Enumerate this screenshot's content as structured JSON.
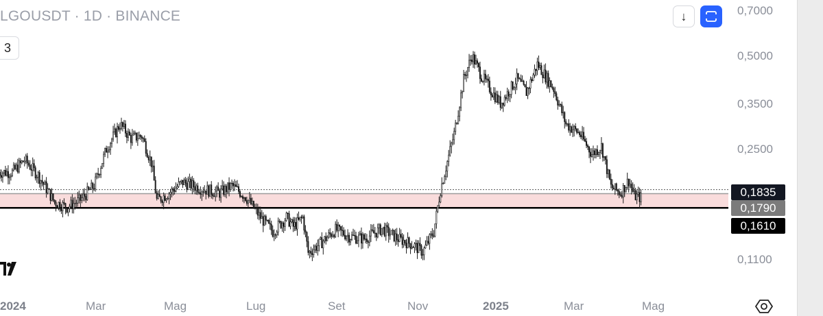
{
  "header": {
    "symbol": "LGOUSDT",
    "interval": "1D",
    "exchange": "BINANCE",
    "sep": "·",
    "interval_chip": "3"
  },
  "toolbar": {
    "down_arrow": "↓",
    "down_icon": "arrow-down-icon",
    "auto_icon": "auto-scale-icon"
  },
  "colors": {
    "candle": "#1a1a1a",
    "zone_fill": "#f9dcdc",
    "zone_border": "#9b9b9b",
    "support_line": "#000000",
    "accent": "#2962ff"
  },
  "price_axis": {
    "ticks": [
      "0,7000",
      "0,5000",
      "0,3500",
      "0,2500",
      "0,1100"
    ]
  },
  "price_tags": [
    {
      "label": "0,1835",
      "color": "#131722"
    },
    {
      "label": "0,1790",
      "color": "#7b7b7b"
    },
    {
      "label": "0,1610",
      "color": "#000000"
    }
  ],
  "time_axis": {
    "ticks": [
      {
        "label": "2024",
        "bold": true
      },
      {
        "label": "Mar",
        "bold": false
      },
      {
        "label": "Mag",
        "bold": false
      },
      {
        "label": "Lug",
        "bold": false
      },
      {
        "label": "Set",
        "bold": false
      },
      {
        "label": "Nov",
        "bold": false
      },
      {
        "label": "2025",
        "bold": true
      },
      {
        "label": "Mar",
        "bold": false
      },
      {
        "label": "Mag",
        "bold": false
      }
    ]
  },
  "chart_data": {
    "type": "candlestick",
    "symbol": "LGOUSDT",
    "timeframe": "1D",
    "exchange": "BINANCE",
    "y_scale": "log",
    "ylim": [
      0.08,
      0.76
    ],
    "x_range": [
      "2024-01-01",
      "2025-05-31"
    ],
    "horizontal_lines": [
      {
        "price": 0.1835,
        "style": "dotted"
      },
      {
        "price": 0.179,
        "style": "zone-top"
      },
      {
        "price": 0.161,
        "style": "solid"
      }
    ],
    "zone": {
      "from": 0.161,
      "to": 0.179
    },
    "close_path": [
      [
        "2024-01-01",
        0.21
      ],
      [
        "2024-01-10",
        0.23
      ],
      [
        "2024-01-20",
        0.205
      ],
      [
        "2024-02-01",
        0.168
      ],
      [
        "2024-02-10",
        0.162
      ],
      [
        "2024-02-20",
        0.171
      ],
      [
        "2024-03-01",
        0.19
      ],
      [
        "2024-03-10",
        0.25
      ],
      [
        "2024-03-20",
        0.3
      ],
      [
        "2024-03-28",
        0.27
      ],
      [
        "2024-04-05",
        0.275
      ],
      [
        "2024-04-12",
        0.225
      ],
      [
        "2024-04-16",
        0.17
      ],
      [
        "2024-04-25",
        0.18
      ],
      [
        "2024-05-05",
        0.195
      ],
      [
        "2024-05-20",
        0.185
      ],
      [
        "2024-06-01",
        0.18
      ],
      [
        "2024-06-10",
        0.19
      ],
      [
        "2024-06-20",
        0.175
      ],
      [
        "2024-07-01",
        0.15
      ],
      [
        "2024-07-10",
        0.135
      ],
      [
        "2024-07-20",
        0.15
      ],
      [
        "2024-07-25",
        0.14
      ],
      [
        "2024-08-01",
        0.15
      ],
      [
        "2024-08-05",
        0.115
      ],
      [
        "2024-08-15",
        0.125
      ],
      [
        "2024-08-25",
        0.137
      ],
      [
        "2024-09-05",
        0.13
      ],
      [
        "2024-09-15",
        0.128
      ],
      [
        "2024-09-28",
        0.138
      ],
      [
        "2024-10-10",
        0.128
      ],
      [
        "2024-10-20",
        0.123
      ],
      [
        "2024-10-28",
        0.116
      ],
      [
        "2024-11-05",
        0.135
      ],
      [
        "2024-11-10",
        0.185
      ],
      [
        "2024-11-20",
        0.28
      ],
      [
        "2024-11-27",
        0.42
      ],
      [
        "2024-12-03",
        0.5
      ],
      [
        "2024-12-10",
        0.43
      ],
      [
        "2024-12-18",
        0.38
      ],
      [
        "2024-12-24",
        0.35
      ],
      [
        "2025-01-05",
        0.42
      ],
      [
        "2025-01-12",
        0.38
      ],
      [
        "2025-01-20",
        0.47
      ],
      [
        "2025-02-01",
        0.39
      ],
      [
        "2025-02-10",
        0.3
      ],
      [
        "2025-02-20",
        0.28
      ],
      [
        "2025-03-01",
        0.24
      ],
      [
        "2025-03-08",
        0.255
      ],
      [
        "2025-03-15",
        0.188
      ],
      [
        "2025-03-22",
        0.18
      ],
      [
        "2025-03-28",
        0.198
      ],
      [
        "2025-04-01",
        0.176
      ],
      [
        "2025-04-06",
        0.174
      ]
    ]
  }
}
